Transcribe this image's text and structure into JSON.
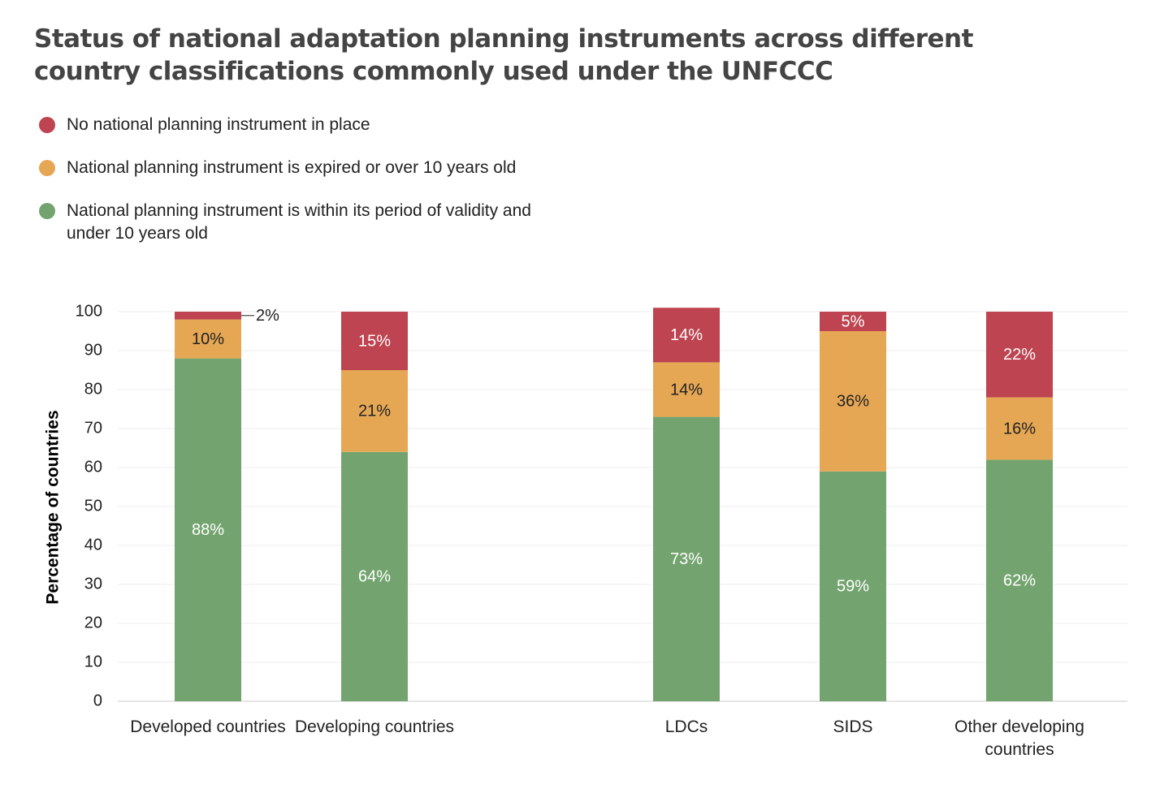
{
  "chart_data": {
    "type": "stacked_bar",
    "title": "Status of national adaptation planning instruments across different country classifications commonly used under the UNFCCC",
    "y_label": "Percentage of countries",
    "categories": [
      "Developed countries",
      "Developing countries",
      "LDCs",
      "SIDS",
      "Other developing countries"
    ],
    "series": [
      {
        "name": "National planning instrument is within its period of validity and under 10 years old",
        "color": "#73a46f",
        "values": [
          88,
          64,
          73,
          59,
          62
        ],
        "value_labels": [
          "88%",
          "64%",
          "73%",
          "59%",
          "62%"
        ]
      },
      {
        "name": "National planning instrument is expired or over 10 years old",
        "color": "#e6a755",
        "values": [
          10,
          21,
          14,
          36,
          16
        ],
        "value_labels": [
          "10%",
          "21%",
          "14%",
          "36%",
          "16%"
        ]
      },
      {
        "name": "No national planning instrument in place",
        "color": "#bd4450",
        "values": [
          2,
          15,
          14,
          5,
          22
        ],
        "value_labels": [
          "2%",
          "15%",
          "14%",
          "5%",
          "22%"
        ]
      }
    ],
    "ylim": [
      0,
      100
    ],
    "yticks": [
      0,
      10,
      20,
      30,
      40,
      50,
      60,
      70,
      80,
      90,
      100
    ],
    "grid": true
  }
}
